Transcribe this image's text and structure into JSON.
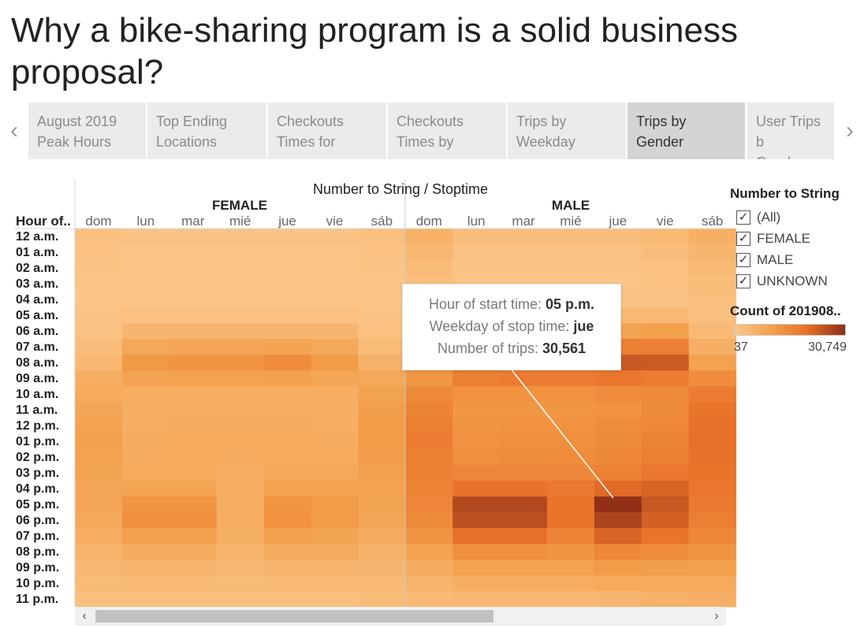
{
  "page": {
    "title": "Why a bike-sharing program is a solid business proposal?"
  },
  "tabs": [
    {
      "label": "August 2019\nPeak Hours",
      "active": false
    },
    {
      "label": "Top Ending\nLocations",
      "active": false
    },
    {
      "label": "Checkouts\nTimes for",
      "active": false
    },
    {
      "label": "Checkouts\nTimes by",
      "active": false
    },
    {
      "label": "Trips by\nWeekday",
      "active": false
    },
    {
      "label": "Trips by\nGender",
      "active": true
    },
    {
      "label": "User Trips b\nGender",
      "active": false
    }
  ],
  "nav": {
    "prev_icon": "chevron-left-icon",
    "next_icon": "chevron-right-icon"
  },
  "legend": {
    "title": "Number to String",
    "items": [
      {
        "label": "(All)",
        "checked": true
      },
      {
        "label": "FEMALE",
        "checked": true
      },
      {
        "label": "MALE",
        "checked": true
      },
      {
        "label": "UNKNOWN",
        "checked": true
      }
    ],
    "color_title": "Count of 201908..",
    "min_label": "37",
    "max_label": "30,749",
    "color_low": "#fbc78a",
    "color_high": "#8e2f17"
  },
  "tooltip": {
    "line1_label": "Hour of start time:",
    "line1_value": "05 p.m.",
    "line2_label": "Weekday of stop time:",
    "line2_value": "jue",
    "line3_label": "Number of trips:",
    "line3_value": "30,561"
  },
  "chart_data": {
    "type": "heatmap",
    "title": "Number to String / Stoptime",
    "row_header": "Hour of..",
    "groups": [
      "FEMALE",
      "MALE"
    ],
    "columns": [
      "dom",
      "lun",
      "mar",
      "mié",
      "jue",
      "vie",
      "sáb"
    ],
    "rows": [
      "12 a.m.",
      "01 a.m.",
      "02 a.m.",
      "03 a.m.",
      "04 a.m.",
      "05 a.m.",
      "06 a.m.",
      "07 a.m.",
      "08 a.m.",
      "09 a.m.",
      "10 a.m.",
      "11 a.m.",
      "12 p.m.",
      "01 p.m.",
      "02 p.m.",
      "03 p.m.",
      "04 p.m.",
      "05 p.m.",
      "06 p.m.",
      "07 p.m.",
      "08 p.m.",
      "09 p.m.",
      "10 p.m.",
      "11 p.m."
    ],
    "color_range": [
      37,
      30749
    ],
    "series": [
      {
        "name": "FEMALE",
        "values": [
          [
            1900,
            1000,
            1000,
            1000,
            1000,
            1000,
            1900
          ],
          [
            1200,
            400,
            400,
            400,
            400,
            400,
            1200
          ],
          [
            800,
            250,
            250,
            250,
            250,
            250,
            800
          ],
          [
            500,
            200,
            200,
            200,
            200,
            200,
            500
          ],
          [
            400,
            400,
            400,
            400,
            400,
            400,
            400
          ],
          [
            700,
            1500,
            1500,
            1500,
            1500,
            1500,
            700
          ],
          [
            1300,
            4500,
            4500,
            4500,
            4500,
            4500,
            1500
          ],
          [
            2500,
            8000,
            8500,
            8500,
            9000,
            8000,
            3000
          ],
          [
            4000,
            11500,
            12500,
            12500,
            14000,
            11000,
            5500
          ],
          [
            6500,
            9000,
            9500,
            9500,
            10000,
            8500,
            8000
          ],
          [
            7500,
            6500,
            6500,
            6500,
            6500,
            6500,
            9500
          ],
          [
            8500,
            6000,
            6000,
            6000,
            6000,
            6000,
            10500
          ],
          [
            9500,
            6500,
            7000,
            7000,
            7000,
            6500,
            11000
          ],
          [
            10000,
            7000,
            7500,
            7500,
            7500,
            7000,
            11000
          ],
          [
            9500,
            7000,
            7500,
            7000,
            7500,
            7500,
            10500
          ],
          [
            9000,
            7500,
            7500,
            6500,
            8000,
            8000,
            10000
          ],
          [
            8500,
            9000,
            9000,
            6500,
            9500,
            9500,
            9500
          ],
          [
            8500,
            12500,
            12500,
            6500,
            12500,
            11000,
            9000
          ],
          [
            8000,
            13500,
            13500,
            6500,
            13000,
            11000,
            8500
          ],
          [
            6500,
            10000,
            10000,
            6000,
            10000,
            9000,
            7000
          ],
          [
            5000,
            7000,
            7000,
            5000,
            7000,
            7000,
            5500
          ],
          [
            4000,
            5000,
            5000,
            4000,
            5000,
            5000,
            4500
          ],
          [
            3000,
            3500,
            3500,
            3000,
            3500,
            3500,
            3500
          ],
          [
            2000,
            2000,
            2000,
            2000,
            2000,
            2000,
            2500
          ]
        ]
      },
      {
        "name": "MALE",
        "values": [
          [
            5500,
            2500,
            2500,
            2500,
            2500,
            3500,
            6000
          ],
          [
            4000,
            1300,
            1300,
            1300,
            1300,
            2500,
            4500
          ],
          [
            3000,
            800,
            800,
            800,
            800,
            1700,
            3500
          ],
          [
            2000,
            600,
            600,
            600,
            600,
            1200,
            2800
          ],
          [
            1500,
            1000,
            1000,
            1000,
            1000,
            1200,
            2000
          ],
          [
            2000,
            3500,
            3500,
            3500,
            3500,
            3500,
            2000
          ],
          [
            3000,
            9000,
            9000,
            9000,
            9000,
            10000,
            3500
          ],
          [
            5000,
            16000,
            16500,
            16500,
            17000,
            17000,
            6000
          ],
          [
            7500,
            22000,
            23000,
            23000,
            24000,
            23500,
            9500
          ],
          [
            12000,
            17000,
            17500,
            17500,
            18500,
            17500,
            14000
          ],
          [
            14500,
            13000,
            13000,
            13000,
            14000,
            14500,
            17500
          ],
          [
            16000,
            12000,
            12000,
            12000,
            13000,
            14500,
            19000
          ],
          [
            17000,
            12500,
            13000,
            13000,
            14000,
            15000,
            20000
          ],
          [
            17500,
            13000,
            13500,
            13500,
            14500,
            16000,
            20000
          ],
          [
            17000,
            13500,
            14000,
            14000,
            15000,
            17000,
            19500
          ],
          [
            16500,
            15500,
            15500,
            15500,
            16500,
            18500,
            19000
          ],
          [
            16000,
            19500,
            19500,
            18000,
            21000,
            22000,
            18500
          ],
          [
            15500,
            26500,
            26500,
            19000,
            30561,
            24000,
            18000
          ],
          [
            14500,
            25500,
            25500,
            19000,
            27000,
            22500,
            17000
          ],
          [
            12500,
            20000,
            20000,
            16000,
            22000,
            19000,
            15000
          ],
          [
            9500,
            13500,
            13500,
            12500,
            15000,
            14000,
            12500
          ],
          [
            7000,
            9500,
            9500,
            9500,
            11000,
            10500,
            10000
          ],
          [
            5000,
            6500,
            6500,
            6500,
            7500,
            7500,
            7500
          ],
          [
            3500,
            4000,
            4000,
            4000,
            4500,
            5500,
            6000
          ]
        ]
      }
    ]
  },
  "scrollbar": {
    "left_icon": "scroll-left-arrow-icon",
    "right_icon": "scroll-right-arrow-icon"
  }
}
